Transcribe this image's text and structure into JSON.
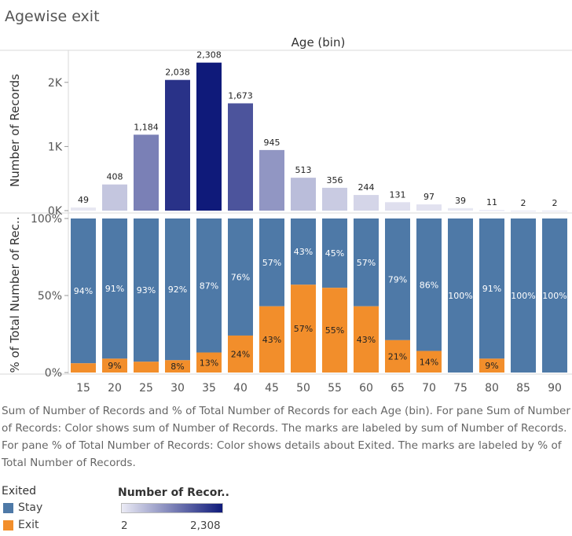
{
  "title": "Agewise exit",
  "caption": "Sum of Number of Records and % of Total Number of Records for each Age (bin).  For pane Sum of Number of Records:  Color shows sum of Number of Records.  The marks are labeled by sum of Number of Records.  For pane % of Total Number of Records:  Color shows details about Exited.  The marks are labeled by % of Total Number of Records.",
  "legend": {
    "exited_title": "Exited",
    "stay_label": "Stay",
    "exit_label": "Exit",
    "records_title": "Number of Recor..",
    "records_min": "2",
    "records_max": "2,308"
  },
  "colors": {
    "stay": "#4e79a7",
    "exit": "#f28e2b",
    "count_low": "#ebebf5",
    "count_high": "#0f1a7a"
  },
  "chart_data": [
    {
      "type": "bar",
      "column_header": "Age (bin)",
      "ylabel": "Number of Records",
      "categories": [
        "15",
        "20",
        "25",
        "30",
        "35",
        "40",
        "45",
        "50",
        "55",
        "60",
        "65",
        "70",
        "75",
        "80",
        "85",
        "90"
      ],
      "values": [
        49,
        408,
        1184,
        2038,
        2308,
        1673,
        945,
        513,
        356,
        244,
        131,
        97,
        39,
        11,
        2,
        2
      ],
      "value_labels": [
        "49",
        "408",
        "1,184",
        "2,038",
        "2,308",
        "1,673",
        "945",
        "513",
        "356",
        "244",
        "131",
        "97",
        "39",
        "11",
        "2",
        "2"
      ],
      "ylim": [
        0,
        2500
      ],
      "yticks": [
        0,
        1000,
        2000
      ],
      "ytick_labels": [
        "0K",
        "1K",
        "2K"
      ]
    },
    {
      "type": "bar",
      "stacked": true,
      "ylabel": "% of Total Number of Rec..",
      "categories": [
        "15",
        "20",
        "25",
        "30",
        "35",
        "40",
        "45",
        "50",
        "55",
        "60",
        "65",
        "70",
        "75",
        "80",
        "85",
        "90"
      ],
      "series": [
        {
          "name": "Stay",
          "values": [
            94,
            91,
            93,
            92,
            87,
            76,
            57,
            43,
            45,
            57,
            79,
            86,
            100,
            91,
            100,
            100
          ],
          "labels": [
            "94%",
            "91%",
            "93%",
            "92%",
            "87%",
            "76%",
            "57%",
            "43%",
            "45%",
            "57%",
            "79%",
            "86%",
            "100%",
            "91%",
            "100%",
            "100%"
          ]
        },
        {
          "name": "Exit",
          "values": [
            6,
            9,
            7,
            8,
            13,
            24,
            43,
            57,
            55,
            43,
            21,
            14,
            0,
            9,
            0,
            0
          ],
          "labels": [
            "",
            "9%",
            "",
            "8%",
            "13%",
            "24%",
            "43%",
            "57%",
            "55%",
            "43%",
            "21%",
            "14%",
            "",
            "9%",
            "",
            ""
          ]
        }
      ],
      "ylim": [
        0,
        100
      ],
      "yticks": [
        0,
        50,
        100
      ],
      "ytick_labels": [
        "0%",
        "50%",
        "100%"
      ]
    }
  ]
}
